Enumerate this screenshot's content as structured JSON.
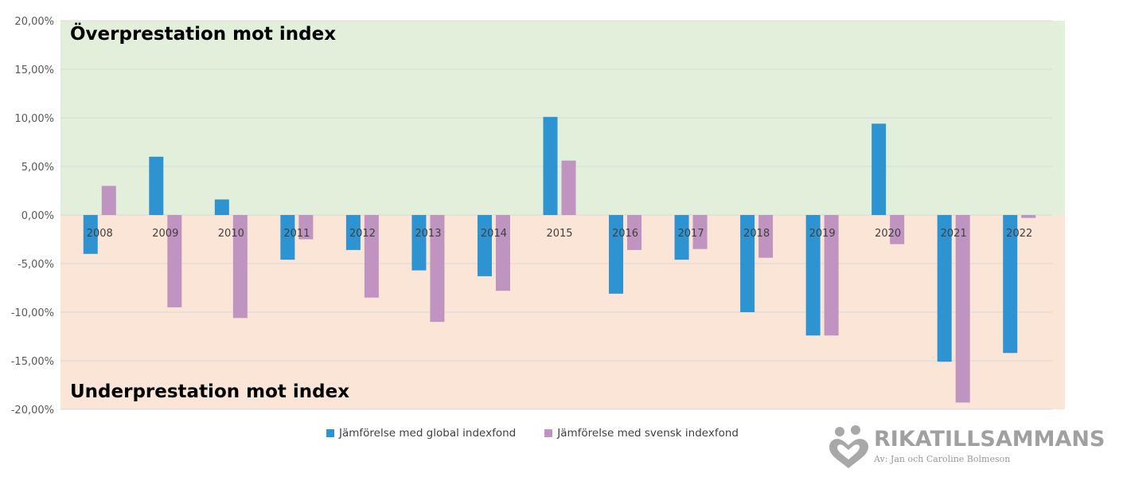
{
  "chart_data": {
    "type": "bar",
    "title": "",
    "categories": [
      "2008",
      "2009",
      "2010",
      "2011",
      "2012",
      "2013",
      "2014",
      "2015",
      "2016",
      "2017",
      "2018",
      "2019",
      "2020",
      "2021",
      "2022"
    ],
    "series": [
      {
        "name": "Jämförelse med global indexfond",
        "color": "#2e93d1",
        "values": [
          -4.0,
          6.0,
          1.6,
          -4.6,
          -3.6,
          -5.7,
          -6.3,
          10.1,
          -8.1,
          -4.6,
          -10.0,
          -12.4,
          9.4,
          -15.1,
          -14.2
        ]
      },
      {
        "name": "Jämförelse med svensk indexfond",
        "color": "#bf94c0",
        "values": [
          3.0,
          -9.5,
          -10.6,
          -2.5,
          -8.5,
          -11.0,
          -7.8,
          5.6,
          -3.6,
          -3.5,
          -4.4,
          -12.4,
          -3.0,
          -19.3,
          -0.3
        ]
      }
    ],
    "ylim": [
      -20,
      20
    ],
    "yticks": [
      "20,00%",
      "15,00%",
      "10,00%",
      "5,00%",
      "0,00%",
      "-5,00%",
      "-10,00%",
      "-15,00%",
      "-20,00%"
    ],
    "ytick_values": [
      20,
      15,
      10,
      5,
      0,
      -5,
      -10,
      -15,
      -20
    ],
    "grid": true,
    "legend": "bottom",
    "positive_zone_color": "#e2efda",
    "negative_zone_color": "#fbe5d6",
    "annotations": {
      "positive_zone": "Överprestation mot index",
      "negative_zone": "Underprestation mot index"
    }
  },
  "logo": {
    "name": "RIKATILLSAMMANS",
    "byline": "Av: Jan och Caroline Bolmeson",
    "icon": "two-people-heart-icon",
    "color": "#a0a0a0"
  }
}
